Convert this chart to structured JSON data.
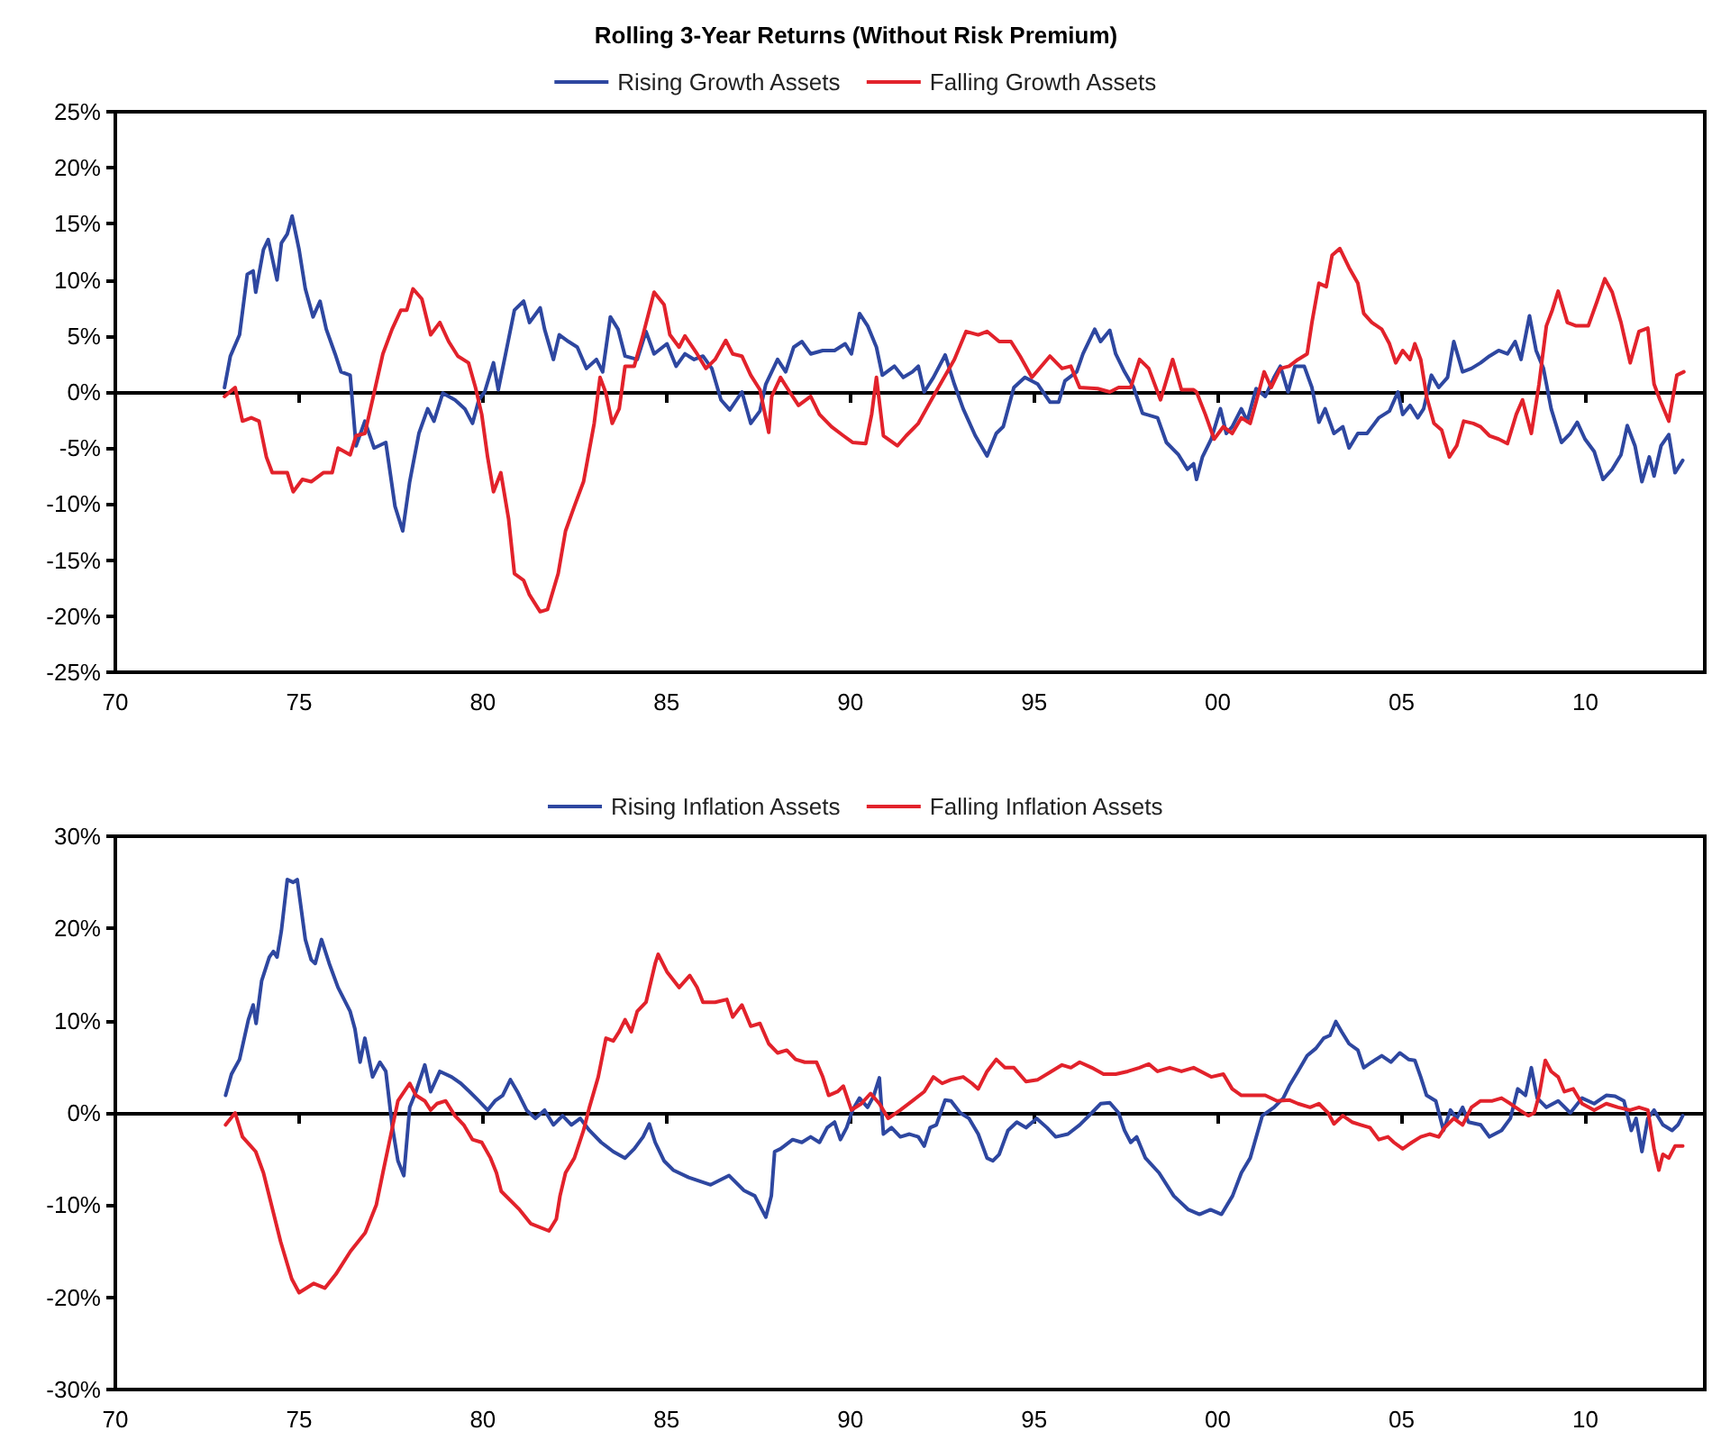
{
  "chart_data": [
    {
      "type": "line",
      "title": "Rolling 3-Year Returns (Without Risk Premium)",
      "legend": "top",
      "marker": "none",
      "xlim": [
        1970,
        2013.25
      ],
      "xticks": [
        {
          "value": 1970,
          "label": "70"
        },
        {
          "value": 1975,
          "label": "75"
        },
        {
          "value": 1980,
          "label": "80"
        },
        {
          "value": 1985,
          "label": "85"
        },
        {
          "value": 1990,
          "label": "90"
        },
        {
          "value": 1995,
          "label": "95"
        },
        {
          "value": 2000,
          "label": "00"
        },
        {
          "value": 2005,
          "label": "05"
        },
        {
          "value": 2010,
          "label": "10"
        }
      ],
      "ylim": [
        -25,
        25
      ],
      "yticks": [
        {
          "value": -25,
          "label": "-25%"
        },
        {
          "value": -20,
          "label": "-20%"
        },
        {
          "value": -15,
          "label": "-15%"
        },
        {
          "value": -10,
          "label": "-10%"
        },
        {
          "value": -5,
          "label": "-5%"
        },
        {
          "value": 0,
          "label": "0%"
        },
        {
          "value": 5,
          "label": "5%"
        },
        {
          "value": 10,
          "label": "10%"
        },
        {
          "value": 15,
          "label": "15%"
        },
        {
          "value": 20,
          "label": "20%"
        },
        {
          "value": 25,
          "label": "25%"
        }
      ],
      "series": [
        {
          "name": "Rising Growth Assets",
          "color": "#2e47a0",
          "x": [
            1972.97,
            1973.13,
            1973.38,
            1973.59,
            1973.75,
            1973.82,
            1974.03,
            1974.16,
            1974.4,
            1974.52,
            1974.68,
            1974.81,
            1975,
            1975.17,
            1975.38,
            1975.57,
            1975.74,
            1975.98,
            1976.14,
            1976.39,
            1976.55,
            1976.79,
            1977.04,
            1977.36,
            1977.61,
            1977.82,
            1978.01,
            1978.26,
            1978.5,
            1978.67,
            1978.91,
            1979.24,
            1979.51,
            1979.72,
            1979.89,
            1980.05,
            1980.29,
            1980.42,
            1980.62,
            1980.86,
            1981.11,
            1981.27,
            1981.56,
            1981.68,
            1981.92,
            1982.08,
            1982.33,
            1982.57,
            1982.82,
            1983.09,
            1983.26,
            1983.47,
            1983.68,
            1983.87,
            1984.2,
            1984.44,
            1984.66,
            1985.01,
            1985.26,
            1985.5,
            1985.75,
            1985.99,
            1986.23,
            1986.48,
            1986.72,
            1987.05,
            1987.29,
            1987.54,
            1987.7,
            1988.02,
            1988.24,
            1988.46,
            1988.68,
            1988.92,
            1989.25,
            1989.57,
            1989.86,
            1990.03,
            1990.25,
            1990.47,
            1990.71,
            1990.87,
            1991.2,
            1991.44,
            1991.69,
            1991.85,
            1992.01,
            1992.26,
            1992.58,
            1992.83,
            1993.07,
            1993.4,
            1993.72,
            1993.97,
            1994.16,
            1994.45,
            1994.75,
            1995.1,
            1995.43,
            1995.67,
            1995.84,
            1996.16,
            1996.33,
            1996.65,
            1996.81,
            1997.06,
            1997.22,
            1997.46,
            1997.71,
            1997.95,
            1998.36,
            1998.6,
            1998.93,
            1999.17,
            1999.34,
            1999.42,
            1999.58,
            1999.82,
            2000.07,
            2000.23,
            2000.39,
            2000.64,
            2000.8,
            2001.04,
            2001.29,
            2001.53,
            2001.7,
            2001.91,
            2002.1,
            2002.35,
            2002.56,
            2002.75,
            2002.92,
            2003.16,
            2003.4,
            2003.57,
            2003.81,
            2004.06,
            2004.38,
            2004.67,
            2004.9,
            2005.03,
            2005.23,
            2005.44,
            2005.6,
            2005.81,
            2006.01,
            2006.25,
            2006.42,
            2006.66,
            2006.9,
            2007.15,
            2007.39,
            2007.64,
            2007.88,
            2008.09,
            2008.25,
            2008.48,
            2008.66,
            2008.86,
            2009.07,
            2009.35,
            2009.59,
            2009.78,
            2009.99,
            2010.24,
            2010.48,
            2010.73,
            2010.97,
            2011.14,
            2011.35,
            2011.54,
            2011.74,
            2011.87,
            2012.06,
            2012.27,
            2012.44,
            2012.65
          ],
          "values": [
            0.4,
            3.2,
            5.1,
            10.5,
            10.8,
            8.9,
            12.7,
            13.6,
            10,
            13.3,
            14.1,
            15.7,
            12.7,
            9.2,
            6.7,
            8.1,
            5.6,
            3.4,
            1.8,
            1.5,
            -4.8,
            -2.6,
            -5,
            -4.5,
            -10.2,
            -12.4,
            -8,
            -3.7,
            -1.5,
            -2.6,
            -0.1,
            -0.7,
            -1.5,
            -2.8,
            -0.7,
            0,
            2.6,
            0.2,
            3.4,
            7.3,
            8.1,
            6.2,
            7.5,
            5.6,
            2.9,
            5.1,
            4.5,
            4,
            2.1,
            2.9,
            1.8,
            6.7,
            5.6,
            3.2,
            2.9,
            5.4,
            3.4,
            4.3,
            2.3,
            3.4,
            2.9,
            3.2,
            2.1,
            -0.7,
            -1.6,
            0,
            -2.8,
            -1.7,
            0.7,
            2.9,
            1.8,
            4,
            4.5,
            3.4,
            3.7,
            3.7,
            4.3,
            3.4,
            7,
            5.9,
            4,
            1.5,
            2.3,
            1.3,
            1.8,
            2.3,
            0,
            1.3,
            3.3,
            0.7,
            -1.5,
            -3.9,
            -5.7,
            -3.7,
            -3.1,
            0.4,
            1.3,
            0.7,
            -0.9,
            -0.9,
            1,
            1.8,
            3.4,
            5.6,
            4.5,
            5.5,
            3.4,
            1.8,
            0.4,
            -1.9,
            -2.3,
            -4.5,
            -5.6,
            -6.9,
            -6.4,
            -7.8,
            -5.8,
            -4.2,
            -1.5,
            -3.7,
            -3.1,
            -1.5,
            -2.6,
            0.3,
            -0.4,
            1.3,
            2.3,
            0,
            2.3,
            2.3,
            0.4,
            -2.7,
            -1.5,
            -3.7,
            -3.1,
            -5,
            -3.7,
            -3.7,
            -2.3,
            -1.7,
            0,
            -2,
            -1.2,
            -2.3,
            -1.5,
            1.5,
            0.4,
            1.3,
            4.5,
            1.8,
            2.1,
            2.6,
            3.2,
            3.7,
            3.4,
            4.5,
            2.9,
            6.8,
            3.7,
            2.1,
            -1.5,
            -4.5,
            -3.7,
            -2.7,
            -4.2,
            -5.3,
            -7.8,
            -6.9,
            -5.6,
            -3,
            -4.8,
            -8,
            -5.8,
            -7.5,
            -4.8,
            -3.8,
            -7.2,
            -6.1
          ]
        },
        {
          "name": "Falling Growth Assets",
          "color": "#e2222b",
          "x": [
            1972.97,
            1973.26,
            1973.46,
            1973.7,
            1973.91,
            1974.11,
            1974.27,
            1974.68,
            1974.84,
            1975.09,
            1975.33,
            1975.66,
            1975.9,
            1976.06,
            1976.39,
            1976.55,
            1976.79,
            1977.04,
            1977.28,
            1977.53,
            1977.77,
            1977.93,
            1978.1,
            1978.34,
            1978.58,
            1978.83,
            1979.07,
            1979.32,
            1979.61,
            1979.8,
            1979.97,
            1980.13,
            1980.29,
            1980.49,
            1980.7,
            1980.86,
            1981.11,
            1981.27,
            1981.56,
            1981.76,
            1982.05,
            1982.25,
            1982.49,
            1982.74,
            1983.03,
            1983.19,
            1983.35,
            1983.52,
            1983.71,
            1983.87,
            1984.12,
            1984.36,
            1984.66,
            1984.93,
            1985.09,
            1985.34,
            1985.5,
            1985.83,
            1986.07,
            1986.32,
            1986.61,
            1986.8,
            1987.05,
            1987.29,
            1987.54,
            1987.78,
            1987.86,
            1988.1,
            1988.35,
            1988.59,
            1988.92,
            1989.16,
            1989.49,
            1989.81,
            1990.06,
            1990.42,
            1990.58,
            1990.71,
            1990.9,
            1991.28,
            1991.52,
            1991.85,
            1992.17,
            1992.5,
            1992.83,
            1993.15,
            1993.48,
            1993.72,
            1994.05,
            1994.37,
            1994.62,
            1994.94,
            1995.43,
            1995.76,
            1996,
            1996.24,
            1996.73,
            1997.06,
            1997.3,
            1997.63,
            1997.87,
            1998.12,
            1998.44,
            1998.77,
            1999.01,
            1999.34,
            1999.42,
            1999.66,
            1999.9,
            2000.15,
            2000.39,
            2000.64,
            2000.88,
            2001.04,
            2001.26,
            2001.45,
            2001.7,
            2001.94,
            2002.18,
            2002.43,
            2002.56,
            2002.75,
            2002.95,
            2003.11,
            2003.32,
            2003.57,
            2003.81,
            2003.97,
            2004.19,
            2004.46,
            2004.67,
            2004.84,
            2005.03,
            2005.23,
            2005.36,
            2005.52,
            2005.68,
            2005.88,
            2006.09,
            2006.3,
            2006.5,
            2006.69,
            2006.95,
            2007.15,
            2007.39,
            2007.64,
            2007.88,
            2008.12,
            2008.29,
            2008.53,
            2008.74,
            2008.94,
            2009.1,
            2009.26,
            2009.51,
            2009.75,
            2010.08,
            2010.32,
            2010.53,
            2010.73,
            2010.97,
            2011.22,
            2011.46,
            2011.7,
            2011.87,
            2012.03,
            2012.27,
            2012.49,
            2012.68
          ],
          "values": [
            -0.4,
            0.4,
            -2.6,
            -2.3,
            -2.6,
            -5.8,
            -7.2,
            -7.2,
            -8.9,
            -7.8,
            -8,
            -7.2,
            -7.2,
            -5,
            -5.6,
            -3.9,
            -3.7,
            -0.1,
            3.4,
            5.6,
            7.3,
            7.3,
            9.2,
            8.3,
            5.1,
            6.2,
            4.5,
            3.2,
            2.6,
            0.4,
            -2,
            -5.8,
            -8.9,
            -7.2,
            -11.3,
            -16.2,
            -16.8,
            -18.1,
            -19.6,
            -19.4,
            -16.2,
            -12.4,
            -10.2,
            -8,
            -2.8,
            1.3,
            -0.1,
            -2.8,
            -1.5,
            2.3,
            2.3,
            5.1,
            8.9,
            7.8,
            5.1,
            4,
            5,
            3.4,
            2.1,
            2.9,
            4.6,
            3.4,
            3.2,
            1.5,
            0.2,
            -3.6,
            -0.4,
            1.3,
            0,
            -1.2,
            -0.4,
            -2,
            -3.1,
            -3.9,
            -4.5,
            -4.6,
            -2,
            1.3,
            -3.9,
            -4.8,
            -3.9,
            -2.8,
            -0.9,
            1,
            2.9,
            5.4,
            5.1,
            5.4,
            4.5,
            4.5,
            3.2,
            1.3,
            3.2,
            2.1,
            2.3,
            0.4,
            0.3,
            0,
            0.4,
            0.4,
            2.9,
            2.1,
            -0.7,
            2.9,
            0.2,
            0.2,
            0,
            -2,
            -4.2,
            -3.1,
            -3.7,
            -2.3,
            -2.8,
            -0.9,
            1.8,
            0.4,
            2.1,
            2.3,
            2.9,
            3.4,
            6.2,
            9.7,
            9.4,
            12.2,
            12.8,
            11.1,
            9.7,
            7,
            6.2,
            5.6,
            4.3,
            2.6,
            3.7,
            2.9,
            4.3,
            2.9,
            -0.4,
            -2.8,
            -3.4,
            -5.8,
            -4.8,
            -2.6,
            -2.8,
            -3.1,
            -3.9,
            -4.2,
            -4.6,
            -2,
            -0.7,
            -3.7,
            0.7,
            5.9,
            7.3,
            9,
            6.2,
            5.9,
            5.9,
            8.1,
            10.1,
            8.9,
            6.2,
            2.6,
            5.4,
            5.7,
            0.7,
            -0.7,
            -2.6,
            1.5,
            1.8
          ]
        }
      ]
    },
    {
      "type": "line",
      "legend": "top",
      "marker": "none",
      "xlim": [
        1970,
        2013.25
      ],
      "xticks": [
        {
          "value": 1970,
          "label": "70"
        },
        {
          "value": 1975,
          "label": "75"
        },
        {
          "value": 1980,
          "label": "80"
        },
        {
          "value": 1985,
          "label": "85"
        },
        {
          "value": 1990,
          "label": "90"
        },
        {
          "value": 1995,
          "label": "95"
        },
        {
          "value": 2000,
          "label": "00"
        },
        {
          "value": 2005,
          "label": "05"
        },
        {
          "value": 2010,
          "label": "10"
        }
      ],
      "ylim": [
        -30,
        30
      ],
      "yticks": [
        {
          "value": -30,
          "label": "-30%"
        },
        {
          "value": -20,
          "label": "-20%"
        },
        {
          "value": -10,
          "label": "-10%"
        },
        {
          "value": 0,
          "label": "0%"
        },
        {
          "value": 10,
          "label": "10%"
        },
        {
          "value": 20,
          "label": "20%"
        },
        {
          "value": 30,
          "label": "30%"
        }
      ],
      "series": [
        {
          "name": "Rising Inflation Assets",
          "color": "#2e47a0",
          "x": [
            1973,
            1973.16,
            1973.38,
            1973.62,
            1973.75,
            1973.83,
            1973.98,
            1974.19,
            1974.3,
            1974.4,
            1974.52,
            1974.68,
            1974.84,
            1974.95,
            1975.17,
            1975.33,
            1975.44,
            1975.61,
            1975.82,
            1976.06,
            1976.39,
            1976.52,
            1976.66,
            1976.79,
            1977,
            1977.2,
            1977.36,
            1977.53,
            1977.69,
            1977.85,
            1978.01,
            1978.18,
            1978.42,
            1978.58,
            1978.83,
            1979.15,
            1979.4,
            1979.64,
            1979.89,
            1980.13,
            1980.33,
            1980.54,
            1980.75,
            1980.94,
            1981.19,
            1981.43,
            1981.68,
            1981.92,
            1982.17,
            1982.41,
            1982.65,
            1982.9,
            1983.22,
            1983.55,
            1983.87,
            1984.12,
            1984.36,
            1984.53,
            1984.69,
            1984.93,
            1985.18,
            1985.6,
            1986.2,
            1986.7,
            1987.1,
            1987.4,
            1987.7,
            1987.85,
            1987.94,
            1988.1,
            1988.43,
            1988.68,
            1988.92,
            1989.16,
            1989.37,
            1989.57,
            1989.73,
            1989.9,
            1990.06,
            1990.25,
            1990.47,
            1990.63,
            1990.79,
            1990.9,
            1991.12,
            1991.36,
            1991.61,
            1991.85,
            1992.01,
            1992.17,
            1992.34,
            1992.58,
            1992.74,
            1992.99,
            1993.23,
            1993.48,
            1993.72,
            1993.88,
            1994.05,
            1994.29,
            1994.53,
            1994.78,
            1995.07,
            1995.35,
            1995.59,
            1995.92,
            1996.24,
            1996.57,
            1996.81,
            1997.06,
            1997.3,
            1997.46,
            1997.63,
            1997.79,
            1998.03,
            1998.4,
            1998.8,
            1999.2,
            1999.5,
            1999.8,
            2000.1,
            2000.4,
            2000.64,
            2000.88,
            2001.21,
            2001.53,
            2001.78,
            2001.94,
            2002.18,
            2002.43,
            2002.67,
            2002.88,
            2003.05,
            2003.21,
            2003.37,
            2003.57,
            2003.81,
            2003.97,
            2004.19,
            2004.46,
            2004.71,
            2004.95,
            2005.19,
            2005.36,
            2005.52,
            2005.68,
            2005.93,
            2006.14,
            2006.33,
            2006.5,
            2006.66,
            2006.82,
            2007.15,
            2007.39,
            2007.72,
            2007.96,
            2008.16,
            2008.37,
            2008.53,
            2008.69,
            2008.94,
            2009.26,
            2009.59,
            2009.91,
            2010.24,
            2010.57,
            2010.81,
            2011.05,
            2011.25,
            2011.38,
            2011.54,
            2011.7,
            2011.87,
            2012.11,
            2012.36,
            2012.52,
            2012.65
          ],
          "values": [
            1.9,
            4.2,
            5.8,
            10.1,
            11.7,
            9.7,
            14.3,
            16.9,
            17.5,
            16.9,
            19.8,
            25.3,
            25,
            25.3,
            18.8,
            16.6,
            16.2,
            18.8,
            16.2,
            13.6,
            11,
            9.1,
            5.5,
            8.1,
            3.9,
            5.5,
            4.5,
            -1.3,
            -5.2,
            -6.8,
            0.6,
            2.3,
            5.2,
            2.3,
            4.5,
            3.9,
            3.2,
            2.3,
            1.3,
            0.3,
            1.3,
            1.9,
            3.6,
            2.3,
            0.3,
            -0.6,
            0.3,
            -1.3,
            -0.3,
            -1.3,
            -0.6,
            -1.9,
            -3.2,
            -4.2,
            -4.9,
            -3.9,
            -2.6,
            -1.2,
            -3.2,
            -5.2,
            -6.2,
            -7,
            -7.8,
            -6.8,
            -8.4,
            -9,
            -11.3,
            -9,
            -4.2,
            -3.9,
            -2.9,
            -3.2,
            -2.6,
            -3.2,
            -1.6,
            -1,
            -2.9,
            -1.6,
            0.3,
            1.6,
            0.6,
            1.8,
            3.8,
            -2.3,
            -1.6,
            -2.6,
            -2.3,
            -2.6,
            -3.6,
            -1.6,
            -1.3,
            1.4,
            1.3,
            0,
            -0.6,
            -2.3,
            -4.9,
            -5.2,
            -4.5,
            -1.9,
            -1,
            -1.6,
            -0.6,
            -1.6,
            -2.6,
            -2.3,
            -1.3,
            0,
            1,
            1.1,
            0,
            -1.9,
            -3.2,
            -2.6,
            -4.9,
            -6.5,
            -9,
            -10.5,
            -11,
            -10.5,
            -11,
            -9,
            -6.5,
            -4.9,
            -0.3,
            0.6,
            1.6,
            2.9,
            4.5,
            6.2,
            7,
            8.1,
            8.4,
            9.9,
            8.8,
            7.5,
            6.8,
            4.9,
            5.5,
            6.2,
            5.5,
            6.5,
            5.8,
            5.7,
            3.9,
            1.9,
            1.3,
            -1.9,
            0.3,
            -0.6,
            0.6,
            -1,
            -1.3,
            -2.6,
            -1.9,
            -0.6,
            2.6,
            1.9,
            4.9,
            1.6,
            0.6,
            1.3,
            0,
            1.6,
            1,
            1.9,
            1.8,
            1.3,
            -1.9,
            -0.6,
            -4.2,
            -0.6,
            0.3,
            -1.3,
            -1.9,
            -1.3,
            -0.3
          ]
        },
        {
          "name": "Falling Inflation Assets",
          "color": "#e2222b",
          "x": [
            1973,
            1973.26,
            1973.46,
            1973.82,
            1974.03,
            1974.5,
            1974.8,
            1975,
            1975.4,
            1975.7,
            1976,
            1976.4,
            1976.8,
            1977.1,
            1977.28,
            1977.69,
            1978.01,
            1978.18,
            1978.42,
            1978.58,
            1978.75,
            1978.99,
            1979.24,
            1979.48,
            1979.72,
            1979.97,
            1980.21,
            1980.37,
            1980.5,
            1981,
            1981.3,
            1981.8,
            1982,
            1982.1,
            1982.25,
            1982.49,
            1982.74,
            1982.9,
            1983.14,
            1983.35,
            1983.55,
            1983.71,
            1983.87,
            1984.04,
            1984.2,
            1984.44,
            1984.69,
            1984.77,
            1985.01,
            1985.34,
            1985.63,
            1985.83,
            1985.99,
            1986.32,
            1986.64,
            1986.8,
            1987.05,
            1987.29,
            1987.54,
            1987.78,
            1988.02,
            1988.27,
            1988.51,
            1988.76,
            1989.08,
            1989.25,
            1989.41,
            1989.65,
            1989.81,
            1990.03,
            1990.3,
            1990.55,
            1990.79,
            1991.03,
            1991.36,
            1991.69,
            1992.01,
            1992.26,
            1992.5,
            1992.74,
            1993.07,
            1993.31,
            1993.48,
            1993.72,
            1993.97,
            1994.21,
            1994.45,
            1994.78,
            1995.1,
            1995.43,
            1995.76,
            1996,
            1996.24,
            1996.57,
            1996.89,
            1997.22,
            1997.55,
            1997.87,
            1998.12,
            1998.36,
            1998.69,
            1999.01,
            1999.34,
            1999.82,
            2000.15,
            2000.39,
            2000.64,
            2000.96,
            2001.29,
            2001.61,
            2001.94,
            2002.18,
            2002.51,
            2002.75,
            2003,
            2003.16,
            2003.4,
            2003.65,
            2003.89,
            2004.14,
            2004.38,
            2004.63,
            2004.79,
            2005.03,
            2005.28,
            2005.52,
            2005.76,
            2006.01,
            2006.17,
            2006.42,
            2006.66,
            2006.9,
            2007.15,
            2007.47,
            2007.72,
            2007.96,
            2008.21,
            2008.45,
            2008.61,
            2008.74,
            2008.91,
            2009.07,
            2009.26,
            2009.43,
            2009.67,
            2009.91,
            2010.24,
            2010.57,
            2010.89,
            2011.22,
            2011.46,
            2011.7,
            2011.87,
            2012,
            2012.11,
            2012.27,
            2012.44,
            2012.65
          ],
          "values": [
            -1.3,
            0,
            -2.6,
            -4.2,
            -6.5,
            -14,
            -18,
            -19.5,
            -18.5,
            -19,
            -17.5,
            -15,
            -13,
            -10,
            -6.5,
            1.3,
            3.2,
            1.9,
            1.3,
            0.3,
            1,
            1.3,
            -0.3,
            -1.3,
            -2.9,
            -3.2,
            -4.9,
            -6.5,
            -8.5,
            -10.5,
            -12,
            -12.8,
            -11.5,
            -9,
            -6.5,
            -4.9,
            -1.9,
            0.6,
            3.9,
            8.1,
            7.8,
            8.8,
            10.1,
            8.8,
            11,
            12,
            16.2,
            17.2,
            15.3,
            13.6,
            14.9,
            13.6,
            12,
            12,
            12.3,
            10.4,
            11.7,
            9.4,
            9.7,
            7.5,
            6.5,
            6.8,
            5.8,
            5.5,
            5.5,
            3.9,
            1.9,
            2.3,
            2.9,
            0.3,
            1,
            2.1,
            1,
            -0.6,
            0.3,
            1.3,
            2.3,
            3.9,
            3.2,
            3.6,
            3.9,
            3.2,
            2.6,
            4.5,
            5.8,
            4.9,
            4.9,
            3.4,
            3.6,
            4.4,
            5.2,
            4.9,
            5.5,
            4.9,
            4.2,
            4.2,
            4.5,
            4.9,
            5.3,
            4.5,
            4.9,
            4.5,
            4.9,
            3.9,
            4.2,
            2.6,
            1.9,
            1.9,
            1.9,
            1.3,
            1.4,
            1,
            0.6,
            1,
            0,
            -1.2,
            -0.3,
            -1,
            -1.3,
            -1.6,
            -2.9,
            -2.6,
            -3.2,
            -3.9,
            -3.2,
            -2.6,
            -2.3,
            -2.6,
            -1.6,
            -0.6,
            -1.3,
            0.6,
            1.3,
            1.3,
            1.6,
            1,
            0.3,
            -0.3,
            0,
            1.9,
            5.7,
            4.5,
            3.9,
            2.3,
            2.6,
            1,
            0.3,
            1,
            0.6,
            0.3,
            0.6,
            0.3,
            -3.9,
            -6.2,
            -4.5,
            -4.9,
            -3.6,
            -3.6
          ]
        }
      ]
    }
  ]
}
